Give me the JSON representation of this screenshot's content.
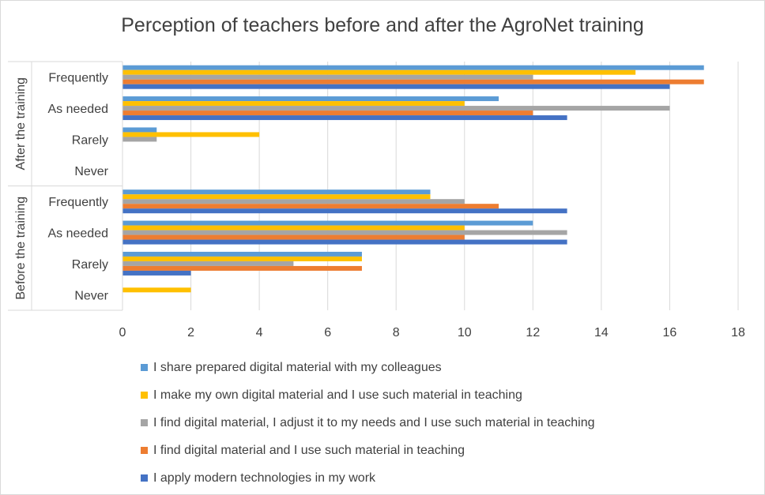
{
  "chart_data": {
    "type": "bar",
    "orientation": "horizontal",
    "title": "Perception of teachers before and after the AgroNet training",
    "groups": [
      {
        "label": "After the training",
        "categories": [
          "Frequently",
          "As needed",
          "Rarely",
          "Never"
        ]
      },
      {
        "label": "Before the training",
        "categories": [
          "Frequently",
          "As needed",
          "Rarely",
          "Never"
        ]
      }
    ],
    "series": [
      {
        "name": "I share prepared digital material with my colleagues",
        "color": "#5b9bd5",
        "values": [
          17,
          11,
          1,
          0,
          9,
          12,
          7,
          0
        ]
      },
      {
        "name": "I make my own digital material and I use such material in teaching",
        "color": "#ffc000",
        "values": [
          15,
          10,
          4,
          0,
          9,
          10,
          7,
          2
        ]
      },
      {
        "name": "I find digital material, I adjust it to my needs and I use such material in teaching",
        "color": "#a5a5a5",
        "values": [
          12,
          16,
          1,
          0,
          10,
          13,
          5,
          0
        ]
      },
      {
        "name": "I find digital material and I use such material in teaching",
        "color": "#ed7d31",
        "values": [
          17,
          12,
          0,
          0,
          11,
          10,
          7,
          0
        ]
      },
      {
        "name": "I apply modern technologies in my work",
        "color": "#4472c4",
        "values": [
          16,
          13,
          0,
          0,
          13,
          13,
          2,
          0
        ]
      }
    ],
    "xlim": [
      0,
      18
    ],
    "xticks": [
      "0",
      "2",
      "4",
      "6",
      "8",
      "10",
      "12",
      "14",
      "16",
      "18"
    ],
    "xlabel": "",
    "ylabel": "",
    "grid": true,
    "legend_position": "bottom"
  }
}
